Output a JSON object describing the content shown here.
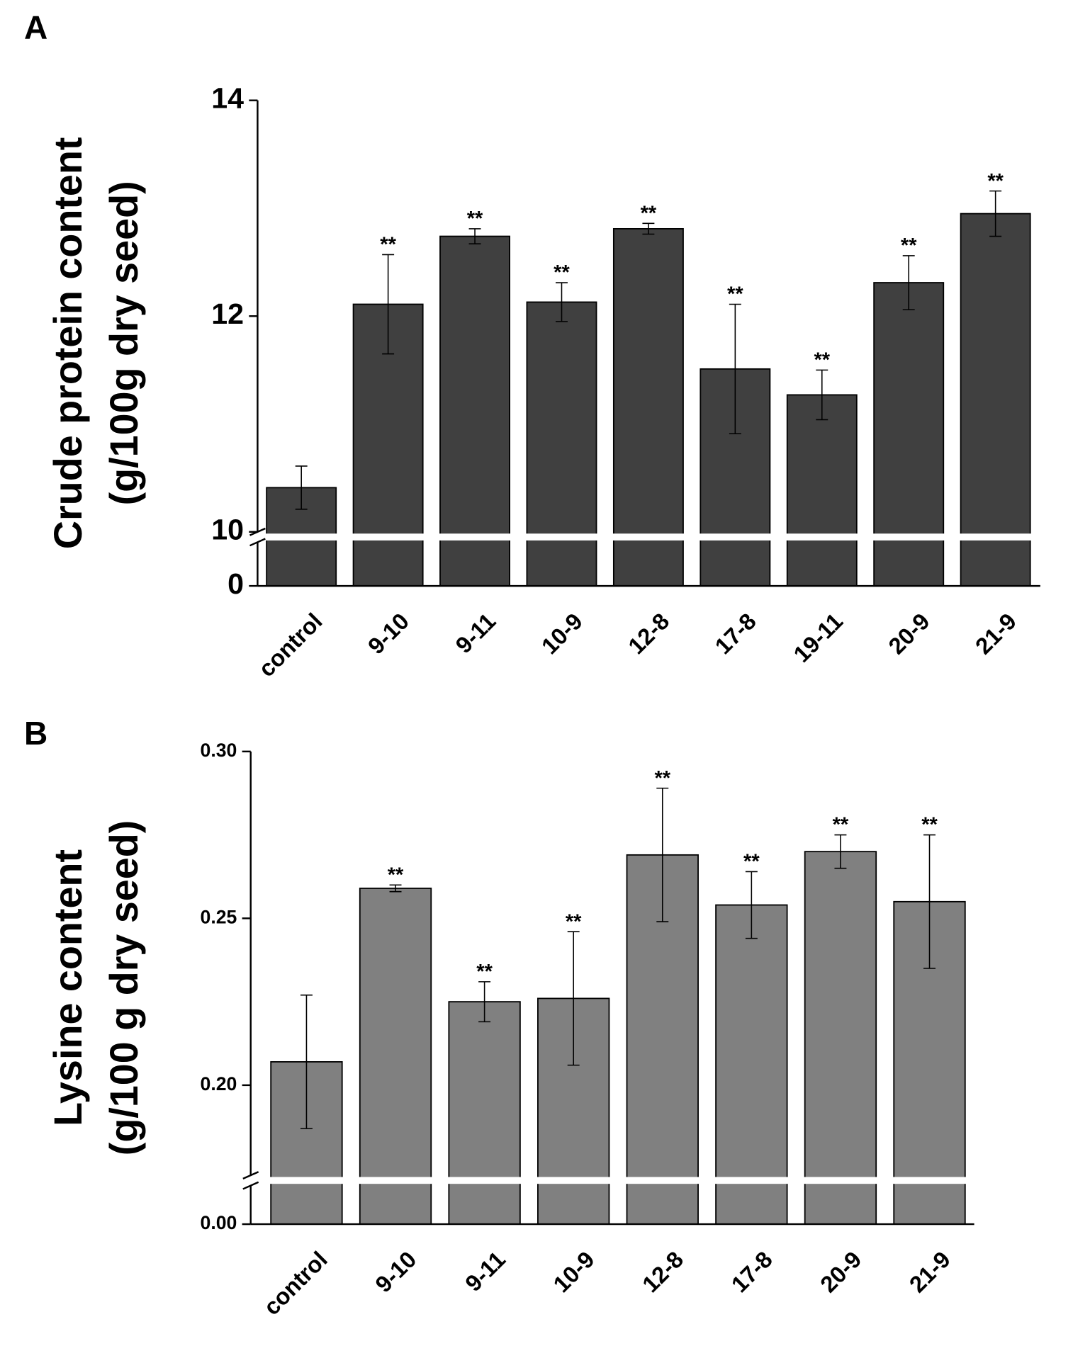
{
  "chart_data": [
    {
      "type": "bar",
      "panel": "A",
      "ylabel": [
        "Crude protein content",
        "(g/100g dry seed)"
      ],
      "categories": [
        "control",
        "9-10",
        "9-11",
        "10-9",
        "12-8",
        "17-8",
        "19-11",
        "20-9",
        "21-9"
      ],
      "values": [
        10.41,
        12.11,
        12.74,
        12.13,
        12.81,
        11.51,
        11.27,
        12.31,
        12.95
      ],
      "errors": [
        0.2,
        0.46,
        0.07,
        0.18,
        0.05,
        0.6,
        0.23,
        0.25,
        0.21
      ],
      "annotations": [
        null,
        "**",
        "**",
        "**",
        "**",
        "**",
        "**",
        "**",
        "**"
      ],
      "color": "#404040",
      "ylim": [
        0,
        14
      ],
      "ybreak": [
        0,
        10
      ],
      "yticks": [
        0,
        10,
        12,
        14
      ]
    },
    {
      "type": "bar",
      "panel": "B",
      "ylabel": [
        "Lysine content",
        "(g/100 g dry seed)"
      ],
      "categories": [
        "control",
        "9-10",
        "9-11",
        "10-9",
        "12-8",
        "17-8",
        "20-9",
        "21-9"
      ],
      "values": [
        0.207,
        0.259,
        0.225,
        0.226,
        0.269,
        0.254,
        0.27,
        0.255
      ],
      "errors": [
        0.02,
        0.001,
        0.006,
        0.02,
        0.02,
        0.01,
        0.005,
        0.02
      ],
      "annotations": [
        null,
        "**",
        "**",
        "**",
        "**",
        "**",
        "**",
        "**"
      ],
      "color": "#808080",
      "ylim": [
        0,
        0.3
      ],
      "ybreak": [
        0,
        0.173
      ],
      "yticks": [
        {
          "value": 0,
          "label": "0.00"
        },
        {
          "value": 0.2,
          "label": "0.20"
        },
        0.25,
        {
          "value": 0.3,
          "label": "0.30"
        }
      ]
    }
  ]
}
